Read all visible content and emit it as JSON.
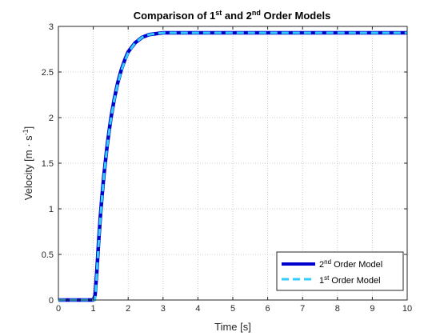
{
  "chart_data": {
    "type": "line",
    "title": {
      "prefix": "Comparison of 1",
      "sup1": "st",
      "middle": " and 2",
      "sup2": "nd",
      "suffix": " Order Models"
    },
    "xlabel": "Time [s]",
    "ylabel": {
      "main": "Velocity [m · s",
      "sup": "-1",
      "close": "]"
    },
    "xlim": [
      0,
      10
    ],
    "ylim": [
      0,
      3
    ],
    "xticks": [
      "0",
      "1",
      "2",
      "3",
      "4",
      "5",
      "6",
      "7",
      "8",
      "9",
      "10"
    ],
    "yticks": [
      "0",
      "0.5",
      "1",
      "1.5",
      "2",
      "2.5",
      "3"
    ],
    "grid": true,
    "legend_position": "bottom-right",
    "series": [
      {
        "name": {
          "prefix": "2",
          "sup": "nd",
          "suffix": " Order Model"
        },
        "color": "#0000cc",
        "style": "solid",
        "x": [
          0,
          1.0,
          1.05,
          1.1,
          1.15,
          1.2,
          1.25,
          1.3,
          1.4,
          1.5,
          1.6,
          1.7,
          1.8,
          1.9,
          2.0,
          2.2,
          2.4,
          2.6,
          2.8,
          3.0,
          3.5,
          4,
          5,
          6,
          7,
          8,
          9,
          10
        ],
        "y": [
          0,
          0,
          0.05,
          0.3,
          0.62,
          0.9,
          1.14,
          1.35,
          1.7,
          1.98,
          2.2,
          2.38,
          2.52,
          2.63,
          2.72,
          2.82,
          2.88,
          2.91,
          2.92,
          2.93,
          2.93,
          2.93,
          2.93,
          2.93,
          2.93,
          2.93,
          2.93,
          2.93
        ]
      },
      {
        "name": {
          "prefix": "1",
          "sup": "st",
          "suffix": " Order Model"
        },
        "color": "#33ccff",
        "style": "dashed",
        "x": [
          0,
          1.0,
          1.05,
          1.1,
          1.15,
          1.2,
          1.25,
          1.3,
          1.4,
          1.5,
          1.6,
          1.7,
          1.8,
          1.9,
          2.0,
          2.2,
          2.4,
          2.6,
          2.8,
          3.0,
          3.5,
          4,
          5,
          6,
          7,
          8,
          9,
          10
        ],
        "y": [
          0,
          0,
          0.0,
          0.28,
          0.6,
          0.88,
          1.12,
          1.34,
          1.69,
          1.97,
          2.19,
          2.37,
          2.51,
          2.62,
          2.71,
          2.82,
          2.88,
          2.91,
          2.92,
          2.93,
          2.93,
          2.93,
          2.93,
          2.93,
          2.93,
          2.93,
          2.93,
          2.93
        ]
      }
    ]
  }
}
